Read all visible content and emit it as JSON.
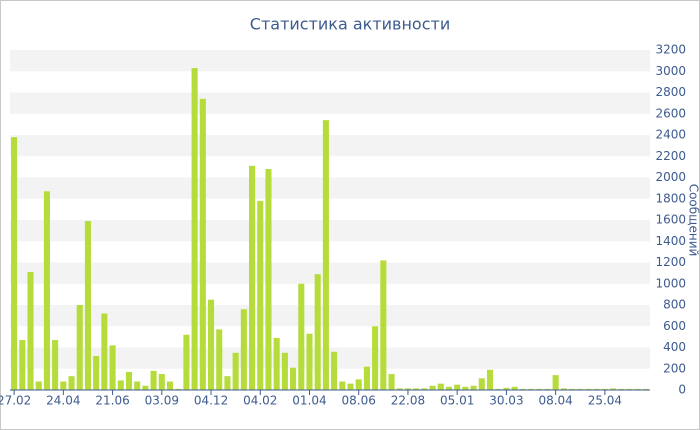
{
  "chart_data": {
    "type": "bar",
    "title": "Статистика активности",
    "y_label": "Сообщений",
    "categories": [
      "27.02",
      null,
      null,
      null,
      null,
      null,
      "24.04",
      null,
      null,
      null,
      null,
      null,
      "21.06",
      null,
      null,
      null,
      null,
      null,
      "03.09",
      null,
      null,
      null,
      null,
      null,
      "04.12",
      null,
      null,
      null,
      null,
      null,
      "04.02",
      null,
      null,
      null,
      null,
      null,
      "01.04",
      null,
      null,
      null,
      null,
      null,
      "08.06",
      null,
      null,
      null,
      null,
      null,
      "22.08",
      null,
      null,
      null,
      null,
      null,
      "05.01",
      null,
      null,
      null,
      null,
      null,
      "30.03",
      null,
      null,
      null,
      null,
      null,
      "08.04",
      null,
      null,
      null,
      null,
      null,
      "25.04",
      null,
      null,
      null,
      null,
      null
    ],
    "values": [
      2380,
      470,
      1110,
      80,
      1870,
      470,
      80,
      130,
      800,
      1590,
      320,
      720,
      420,
      90,
      170,
      80,
      40,
      180,
      150,
      80,
      10,
      520,
      3030,
      2740,
      850,
      570,
      130,
      350,
      760,
      2110,
      1780,
      2080,
      490,
      350,
      210,
      1000,
      530,
      1090,
      2540,
      360,
      80,
      60,
      100,
      220,
      600,
      1220,
      150,
      15,
      15,
      15,
      15,
      40,
      60,
      30,
      50,
      30,
      40,
      110,
      190,
      10,
      20,
      30,
      10,
      10,
      10,
      10,
      140,
      15,
      10,
      10,
      10,
      10,
      10,
      15,
      10,
      10,
      10,
      10
    ],
    "color": "#b5dc3a",
    "ylim": [
      0,
      3200
    ],
    "yticks": [
      0,
      200,
      400,
      600,
      800,
      1000,
      1200,
      1400,
      1600,
      1800,
      2000,
      2200,
      2400,
      2600,
      2800,
      3000,
      3200
    ],
    "grid": true
  }
}
